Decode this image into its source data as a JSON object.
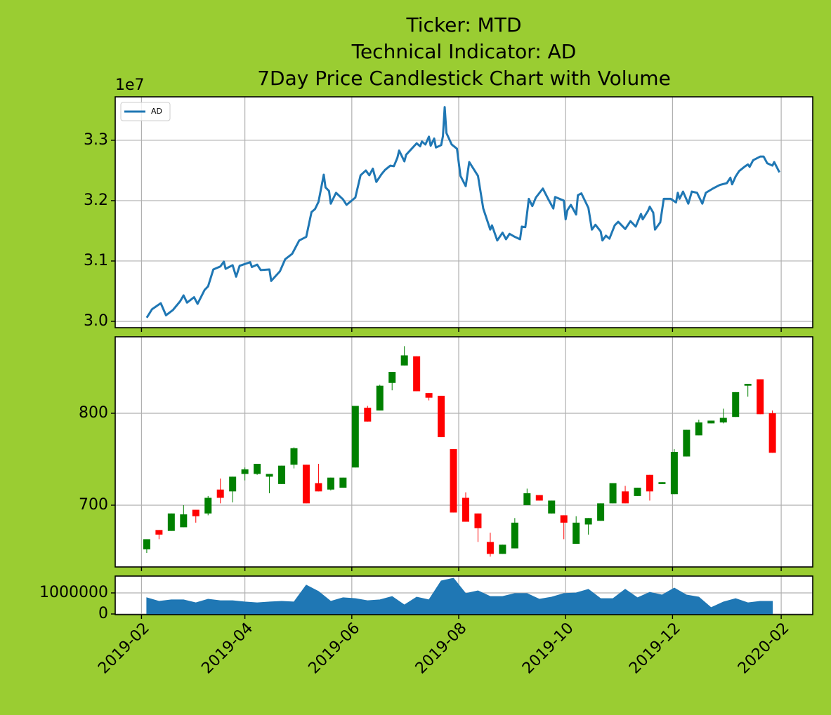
{
  "chart_data": [
    {
      "type": "line",
      "title": [
        "Ticker: MTD",
        "Technical Indicator: AD",
        "7Day Price Candlestick Chart with Volume"
      ],
      "y_offset_label": "1e7",
      "legend": "upper left",
      "grid": true,
      "xlim": [
        "2019-01-17",
        "2020-02-19"
      ],
      "ylim": [
        2.9895,
        3.372
      ],
      "yticks": [
        {
          "value": 3,
          "label": "3.0"
        },
        3.1,
        3.2,
        3.3
      ],
      "x": [
        "2019-02-04",
        "2019-02-07",
        "2019-02-12",
        "2019-02-15",
        "2019-02-19",
        "2019-02-23",
        "2019-02-25",
        "2019-02-27",
        "2019-03-03",
        "2019-03-05",
        "2019-03-09",
        "2019-03-11",
        "2019-03-14",
        "2019-03-18",
        "2019-03-20",
        "2019-03-21",
        "2019-03-25",
        "2019-03-27",
        "2019-03-29",
        "2019-04-04",
        "2019-04-05",
        "2019-04-08",
        "2019-04-10",
        "2019-04-15",
        "2019-04-16",
        "2019-04-21",
        "2019-04-24",
        "2019-04-28",
        "2019-05-02",
        "2019-05-06",
        "2019-05-09",
        "2019-05-11",
        "2019-05-13",
        "2019-05-16",
        "2019-05-17",
        "2019-05-19",
        "2019-05-20",
        "2019-05-23",
        "2019-05-27",
        "2019-05-29",
        "2019-06-03",
        "2019-06-06",
        "2019-06-09",
        "2019-06-11",
        "2019-06-13",
        "2019-06-15",
        "2019-06-18",
        "2019-06-20",
        "2019-06-23",
        "2019-06-25",
        "2019-06-27",
        "2019-06-28",
        "2019-07-01",
        "2019-07-02",
        "2019-07-08",
        "2019-07-10",
        "2019-07-11",
        "2019-07-13",
        "2019-07-15",
        "2019-07-16",
        "2019-07-18",
        "2019-07-19",
        "2019-07-22",
        "2019-07-23",
        "2019-07-24",
        "2019-07-25",
        "2019-07-28",
        "2019-07-31",
        "2019-08-02",
        "2019-08-05",
        "2019-08-07",
        "2019-08-12",
        "2019-08-15",
        "2019-08-19",
        "2019-08-20",
        "2019-08-23",
        "2019-08-26",
        "2019-08-28",
        "2019-08-30",
        "2019-09-02",
        "2019-09-05",
        "2019-09-06",
        "2019-09-08",
        "2019-09-09",
        "2019-09-10",
        "2019-09-12",
        "2019-09-14",
        "2019-09-18",
        "2019-09-21",
        "2019-09-24",
        "2019-09-25",
        "2019-09-30",
        "2019-10-01",
        "2019-10-02",
        "2019-10-04",
        "2019-10-07",
        "2019-10-08",
        "2019-10-10",
        "2019-10-14",
        "2019-10-16",
        "2019-10-18",
        "2019-10-21",
        "2019-10-22",
        "2019-10-24",
        "2019-10-26",
        "2019-10-29",
        "2019-10-31",
        "2019-11-04",
        "2019-11-07",
        "2019-11-10",
        "2019-11-13",
        "2019-11-14",
        "2019-11-17",
        "2019-11-18",
        "2019-11-20",
        "2019-11-21",
        "2019-11-24",
        "2019-11-26",
        "2019-11-30",
        "2019-12-03",
        "2019-12-04",
        "2019-12-05",
        "2019-12-07",
        "2019-12-10",
        "2019-12-12",
        "2019-12-15",
        "2019-12-18",
        "2019-12-20",
        "2019-12-24",
        "2019-12-28",
        "2020-01-01",
        "2020-01-03",
        "2020-01-04",
        "2020-01-06",
        "2020-01-08",
        "2020-01-11",
        "2020-01-13",
        "2020-01-14",
        "2020-01-16",
        "2020-01-20",
        "2020-01-22",
        "2020-01-24",
        "2020-01-27",
        "2020-01-28",
        "2020-01-31"
      ],
      "series": [
        {
          "name": "AD",
          "color": "#1f77b4",
          "values": [
            3.006,
            3.02,
            3.03,
            3.01,
            3.019,
            3.033,
            3.043,
            3.031,
            3.04,
            3.029,
            3.052,
            3.058,
            3.086,
            3.091,
            3.099,
            3.087,
            3.093,
            3.074,
            3.092,
            3.098,
            3.09,
            3.094,
            3.085,
            3.086,
            3.067,
            3.083,
            3.103,
            3.112,
            3.134,
            3.14,
            3.181,
            3.186,
            3.198,
            3.243,
            3.222,
            3.216,
            3.195,
            3.213,
            3.202,
            3.193,
            3.205,
            3.242,
            3.25,
            3.242,
            3.253,
            3.231,
            3.244,
            3.251,
            3.258,
            3.257,
            3.271,
            3.283,
            3.265,
            3.276,
            3.295,
            3.29,
            3.298,
            3.293,
            3.306,
            3.291,
            3.303,
            3.288,
            3.292,
            3.307,
            3.355,
            3.312,
            3.293,
            3.286,
            3.241,
            3.224,
            3.264,
            3.241,
            3.187,
            3.152,
            3.159,
            3.134,
            3.147,
            3.136,
            3.145,
            3.14,
            3.136,
            3.157,
            3.156,
            3.179,
            3.203,
            3.191,
            3.205,
            3.22,
            3.203,
            3.187,
            3.206,
            3.2,
            3.169,
            3.184,
            3.193,
            3.177,
            3.209,
            3.212,
            3.188,
            3.152,
            3.16,
            3.149,
            3.134,
            3.142,
            3.137,
            3.159,
            3.165,
            3.153,
            3.166,
            3.157,
            3.178,
            3.169,
            3.183,
            3.19,
            3.18,
            3.152,
            3.164,
            3.203,
            3.203,
            3.197,
            3.213,
            3.203,
            3.215,
            3.195,
            3.215,
            3.213,
            3.195,
            3.213,
            3.22,
            3.226,
            3.229,
            3.238,
            3.227,
            3.24,
            3.249,
            3.256,
            3.26,
            3.256,
            3.267,
            3.273,
            3.273,
            3.262,
            3.258,
            3.264,
            3.247
          ]
        }
      ]
    },
    {
      "type": "candlestick",
      "grid": true,
      "up_color": "green",
      "down_color": "red",
      "xlim": [
        "2019-01-17",
        "2020-02-19"
      ],
      "ylim": [
        632.8,
        883.2
      ],
      "yticks": [
        700,
        800
      ],
      "x": [
        "2019-02-04",
        "2019-02-11",
        "2019-02-18",
        "2019-02-25",
        "2019-03-04",
        "2019-03-11",
        "2019-03-18",
        "2019-03-25",
        "2019-04-01",
        "2019-04-08",
        "2019-04-15",
        "2019-04-22",
        "2019-04-29",
        "2019-05-06",
        "2019-05-13",
        "2019-05-20",
        "2019-05-27",
        "2019-06-03",
        "2019-06-10",
        "2019-06-17",
        "2019-06-24",
        "2019-07-01",
        "2019-07-08",
        "2019-07-15",
        "2019-07-22",
        "2019-07-29",
        "2019-08-05",
        "2019-08-12",
        "2019-08-19",
        "2019-08-26",
        "2019-09-02",
        "2019-09-09",
        "2019-09-16",
        "2019-09-23",
        "2019-09-30",
        "2019-10-07",
        "2019-10-14",
        "2019-10-21",
        "2019-10-28",
        "2019-11-04",
        "2019-11-11",
        "2019-11-18",
        "2019-11-25",
        "2019-12-02",
        "2019-12-09",
        "2019-12-16",
        "2019-12-23",
        "2019-12-30",
        "2020-01-06",
        "2020-01-13",
        "2020-01-20",
        "2020-01-27"
      ],
      "open": [
        652,
        673,
        672,
        676,
        695,
        691,
        717,
        715,
        734,
        734,
        731,
        723,
        744,
        744,
        724,
        717,
        719,
        741,
        806,
        803,
        833,
        852,
        862,
        822,
        819,
        761,
        708,
        691,
        660,
        647,
        653,
        700,
        711,
        691,
        689,
        658,
        679,
        683,
        702,
        715,
        710,
        733,
        723,
        712,
        753,
        776,
        789,
        790,
        796,
        830,
        837,
        800
      ],
      "high": [
        663,
        673,
        691,
        700,
        695,
        710,
        729,
        731,
        741,
        745,
        734,
        743,
        763,
        744,
        745,
        730,
        730,
        808,
        808,
        831,
        845,
        873,
        862,
        822,
        819,
        761,
        714,
        691,
        670,
        657,
        686,
        718,
        711,
        705,
        689,
        688,
        686,
        702,
        724,
        721,
        719,
        733,
        725,
        761,
        782,
        793,
        792,
        805,
        823,
        832,
        837,
        803
      ],
      "low": [
        648,
        663,
        672,
        676,
        681,
        689,
        702,
        703,
        727,
        733,
        713,
        723,
        740,
        702,
        715,
        716,
        719,
        741,
        791,
        803,
        825,
        852,
        824,
        814,
        774,
        692,
        682,
        660,
        644,
        647,
        653,
        700,
        705,
        691,
        663,
        658,
        668,
        683,
        702,
        702,
        710,
        705,
        723,
        712,
        753,
        776,
        789,
        789,
        796,
        818,
        799,
        757
      ],
      "close": [
        663,
        668,
        691,
        690,
        688,
        708,
        708,
        731,
        739,
        745,
        734,
        743,
        762,
        702,
        715,
        730,
        730,
        808,
        791,
        830,
        845,
        863,
        824,
        817,
        774,
        692,
        682,
        675,
        647,
        657,
        681,
        713,
        705,
        705,
        681,
        681,
        686,
        702,
        724,
        702,
        719,
        715,
        725,
        758,
        782,
        790,
        792,
        795,
        823,
        832,
        799,
        757
      ]
    },
    {
      "type": "area",
      "grid": true,
      "color": "#1f77b4",
      "xlim": [
        "2019-01-17",
        "2020-02-19"
      ],
      "xticks": [
        "2019-02",
        "2019-04",
        "2019-06",
        "2019-08",
        "2019-10",
        "2019-12",
        "2020-02"
      ],
      "ylim": [
        -33000,
        1800000
      ],
      "yticks": [
        0,
        1000000
      ],
      "x": [
        "2019-02-04",
        "2019-02-11",
        "2019-02-18",
        "2019-02-25",
        "2019-03-04",
        "2019-03-11",
        "2019-03-18",
        "2019-03-25",
        "2019-04-01",
        "2019-04-08",
        "2019-04-15",
        "2019-04-22",
        "2019-04-29",
        "2019-05-06",
        "2019-05-13",
        "2019-05-20",
        "2019-05-27",
        "2019-06-03",
        "2019-06-10",
        "2019-06-17",
        "2019-06-24",
        "2019-07-01",
        "2019-07-08",
        "2019-07-15",
        "2019-07-22",
        "2019-07-29",
        "2019-08-05",
        "2019-08-12",
        "2019-08-19",
        "2019-08-26",
        "2019-09-02",
        "2019-09-09",
        "2019-09-16",
        "2019-09-23",
        "2019-09-30",
        "2019-10-07",
        "2019-10-14",
        "2019-10-21",
        "2019-10-28",
        "2019-11-04",
        "2019-11-11",
        "2019-11-18",
        "2019-11-25",
        "2019-12-02",
        "2019-12-09",
        "2019-12-16",
        "2019-12-23",
        "2019-12-30",
        "2020-01-06",
        "2020-01-13",
        "2020-01-20",
        "2020-01-27"
      ],
      "values": [
        770000,
        600000,
        670000,
        670000,
        530000,
        700000,
        630000,
        630000,
        570000,
        530000,
        570000,
        600000,
        570000,
        1370000,
        1070000,
        600000,
        770000,
        730000,
        630000,
        670000,
        830000,
        430000,
        800000,
        670000,
        1570000,
        1700000,
        970000,
        1100000,
        830000,
        830000,
        970000,
        970000,
        700000,
        800000,
        970000,
        1000000,
        1170000,
        730000,
        730000,
        1170000,
        770000,
        1030000,
        900000,
        1230000,
        900000,
        800000,
        300000,
        570000,
        730000,
        530000,
        600000,
        600000
      ]
    }
  ]
}
